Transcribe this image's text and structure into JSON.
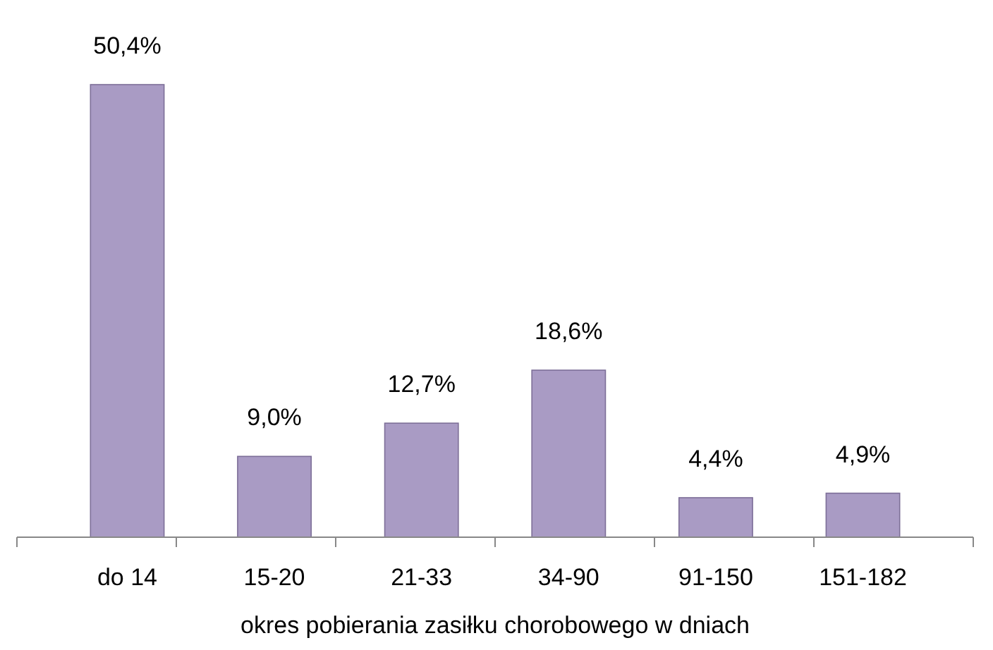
{
  "chart_data": {
    "type": "bar",
    "xlabel": "okres pobierania zasiłku chorobowego w dniach",
    "categories": [
      "do 14",
      "15-20",
      "21-33",
      "34-90",
      "91-150",
      "151-182"
    ],
    "values": [
      50.4,
      9.0,
      12.7,
      18.6,
      4.4,
      4.9
    ],
    "value_labels": [
      "50,4%",
      "9,0%",
      "12,7%",
      "18,6%",
      "4,4%",
      "4,9%"
    ],
    "color": "#a99bc4"
  }
}
